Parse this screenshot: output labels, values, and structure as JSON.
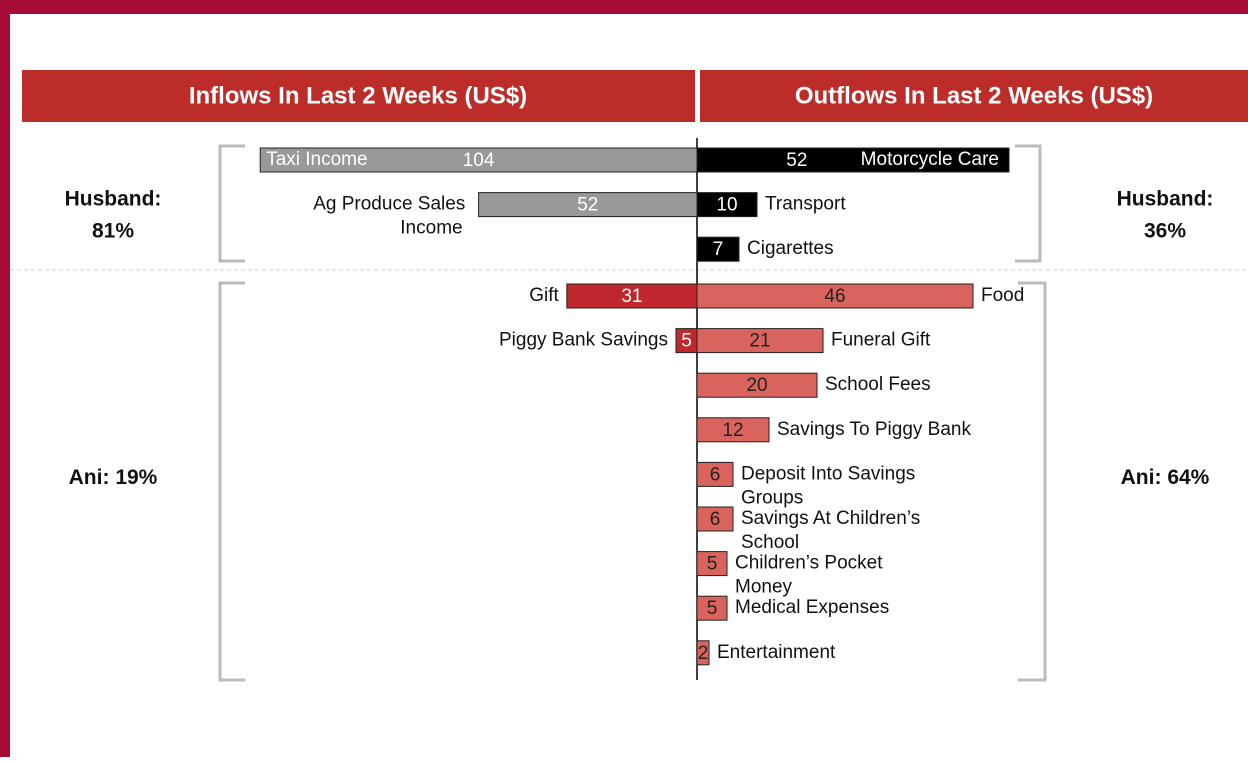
{
  "chart_data": {
    "type": "butterfly",
    "inflows": {
      "title": "Inflows In Last 2 Weeks (US$)",
      "groups": [
        {
          "name": "Husband:",
          "share": "81%",
          "color": "#999999",
          "label_color": "#ffffff",
          "categories": [
            "Taxi Income",
            "Ag Produce Sales Income"
          ],
          "values": [
            104,
            52
          ]
        },
        {
          "name": "Ani:",
          "share": "19%",
          "color": "#c0282d",
          "label_color": "#ffffff",
          "categories": [
            "Gift",
            "Piggy Bank Savings"
          ],
          "values": [
            31,
            5
          ]
        }
      ]
    },
    "outflows": {
      "title": "Outflows In Last 2 Weeks (US$)",
      "groups": [
        {
          "name": "Husband:",
          "share": "36%",
          "color": "#000000",
          "label_color": "#ffffff",
          "categories": [
            "Motorcycle Care",
            "Transport",
            "Cigarettes"
          ],
          "values": [
            52,
            10,
            7
          ]
        },
        {
          "name": "Ani:",
          "share": "64%",
          "color": "#d9635d",
          "label_color": "#222222",
          "categories": [
            "Food",
            "Funeral Gift",
            "School Fees",
            "Savings To Piggy Bank",
            "Deposit Into Savings Groups",
            "Savings At Children’s School",
            "Children’s Pocket Money",
            "Medical Expenses",
            "Entertainment"
          ],
          "values": [
            46,
            21,
            20,
            12,
            6,
            6,
            5,
            5,
            2
          ]
        }
      ]
    }
  }
}
